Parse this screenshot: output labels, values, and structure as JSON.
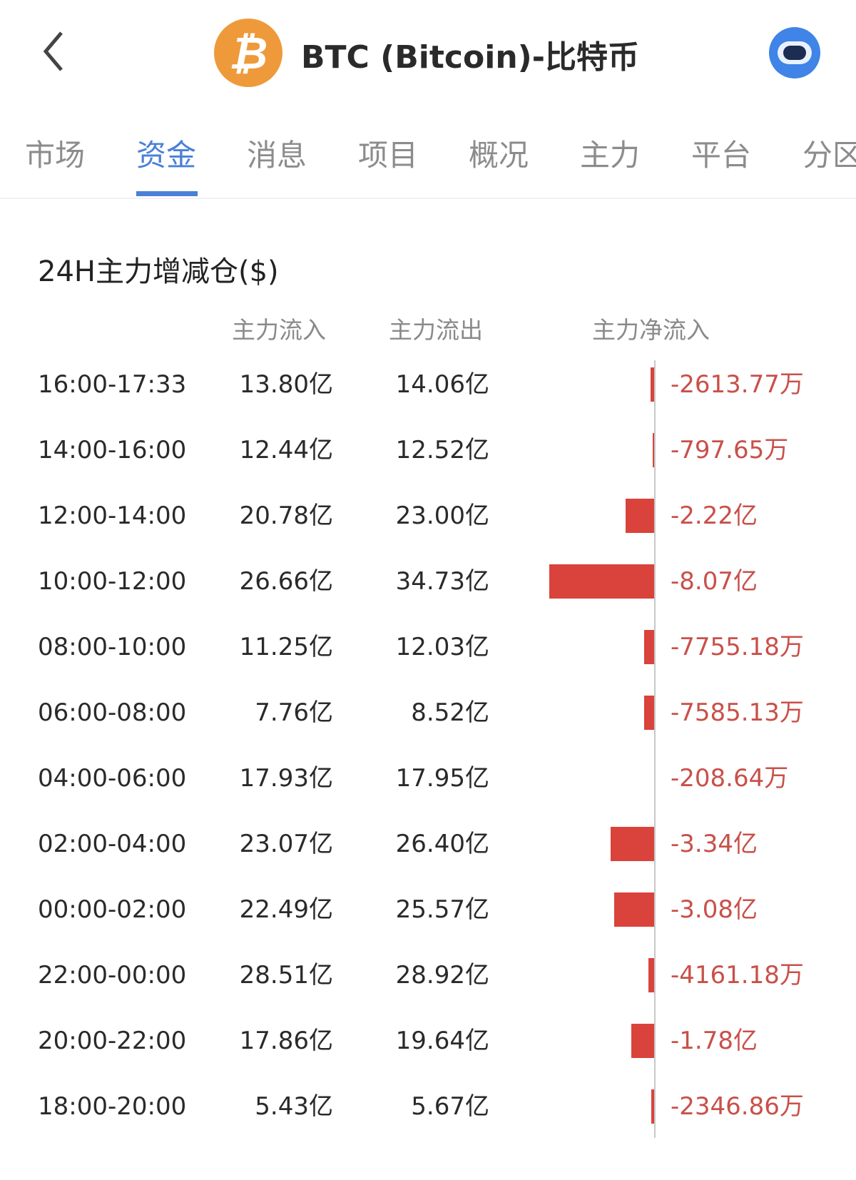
{
  "header": {
    "title": "BTC (Bitcoin)-比特币",
    "back_icon": "chevron-left-icon",
    "logo_icon": "bitcoin-logo",
    "logo_glyph": "₿",
    "assistant_icon": "robot-avatar-icon"
  },
  "tabs": [
    {
      "label": "市场"
    },
    {
      "label": "资金",
      "active": true
    },
    {
      "label": "消息"
    },
    {
      "label": "项目"
    },
    {
      "label": "概况"
    },
    {
      "label": "主力"
    },
    {
      "label": "平台"
    },
    {
      "label": "分区"
    }
  ],
  "section": {
    "title": "24H主力增减仓($)",
    "columns": {
      "inflow": "主力流入",
      "outflow": "主力流出",
      "net": "主力净流入"
    },
    "rows": [
      {
        "time": "16:00-17:33",
        "inflow": "13.80亿",
        "outflow": "14.06亿",
        "net": "-2613.77万",
        "net_yi": -0.2614
      },
      {
        "time": "14:00-16:00",
        "inflow": "12.44亿",
        "outflow": "12.52亿",
        "net": "-797.65万",
        "net_yi": -0.0798
      },
      {
        "time": "12:00-14:00",
        "inflow": "20.78亿",
        "outflow": "23.00亿",
        "net": "-2.22亿",
        "net_yi": -2.22
      },
      {
        "time": "10:00-12:00",
        "inflow": "26.66亿",
        "outflow": "34.73亿",
        "net": "-8.07亿",
        "net_yi": -8.07
      },
      {
        "time": "08:00-10:00",
        "inflow": "11.25亿",
        "outflow": "12.03亿",
        "net": "-7755.18万",
        "net_yi": -0.7755
      },
      {
        "time": "06:00-08:00",
        "inflow": "7.76亿",
        "outflow": "8.52亿",
        "net": "-7585.13万",
        "net_yi": -0.7585
      },
      {
        "time": "04:00-06:00",
        "inflow": "17.93亿",
        "outflow": "17.95亿",
        "net": "-208.64万",
        "net_yi": -0.0209
      },
      {
        "time": "02:00-04:00",
        "inflow": "23.07亿",
        "outflow": "26.40亿",
        "net": "-3.34亿",
        "net_yi": -3.34
      },
      {
        "time": "00:00-02:00",
        "inflow": "22.49亿",
        "outflow": "25.57亿",
        "net": "-3.08亿",
        "net_yi": -3.08
      },
      {
        "time": "22:00-00:00",
        "inflow": "28.51亿",
        "outflow": "28.92亿",
        "net": "-4161.18万",
        "net_yi": -0.4161
      },
      {
        "time": "20:00-22:00",
        "inflow": "17.86亿",
        "outflow": "19.64亿",
        "net": "-1.78亿",
        "net_yi": -1.78
      },
      {
        "time": "18:00-20:00",
        "inflow": "5.43亿",
        "outflow": "5.67亿",
        "net": "-2346.86万",
        "net_yi": -0.2347
      }
    ]
  },
  "colors": {
    "accent": "#4a80d8",
    "negative_bar": "#d9433b",
    "negative_text": "#c9504a",
    "logo": "#ee9a3b"
  }
}
